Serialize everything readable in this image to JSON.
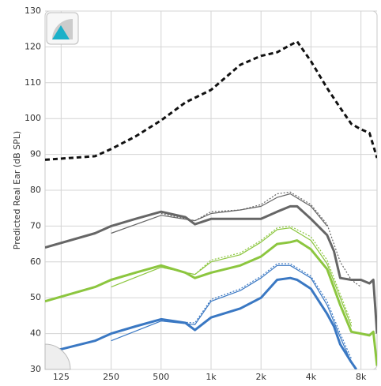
{
  "chart_data": {
    "type": "line",
    "y_label": "Predicted Real Ear (dB SPL)",
    "xscale": "log",
    "grid": true,
    "xlim": [
      100,
      10000
    ],
    "ylim": [
      30,
      130
    ],
    "xticks": [
      125,
      250,
      500,
      {
        "value": 1000,
        "label": "1k"
      },
      {
        "value": 2000,
        "label": "2k"
      },
      {
        "value": 4000,
        "label": "4k"
      },
      {
        "value": 8000,
        "label": "8k"
      }
    ],
    "yticks": [
      30,
      40,
      50,
      60,
      70,
      80,
      90,
      100,
      110,
      120,
      130
    ],
    "series": [
      {
        "color": "#111111",
        "style": "dashed",
        "weight": "thick",
        "x": [
          100,
          200,
          250,
          350,
          500,
          700,
          1000,
          1500,
          2000,
          2500,
          3000,
          3300,
          4000,
          5000,
          6000,
          7000,
          8000,
          9000,
          10000
        ],
        "values": [
          88.5,
          89.5,
          91.5,
          95,
          99.5,
          104.5,
          108,
          115,
          117.5,
          118.5,
          120.5,
          121.5,
          116,
          108.5,
          103,
          98.5,
          97,
          96,
          89
        ]
      },
      {
        "color": "#666666",
        "style": "solid",
        "weight": "thick",
        "x": [
          100,
          200,
          250,
          350,
          500,
          700,
          800,
          1000,
          1500,
          2000,
          2500,
          3000,
          3300,
          4000,
          5000,
          5500,
          6000,
          7000,
          8000,
          9000,
          9500,
          10000
        ],
        "values": [
          64,
          68,
          70,
          72,
          74,
          72.5,
          70.5,
          72,
          72,
          72,
          74,
          75.5,
          75.5,
          72,
          67.5,
          63,
          55.5,
          55,
          55,
          54,
          55,
          40
        ]
      },
      {
        "color": "#666666",
        "style": "dotted",
        "weight": "thin",
        "x": [
          500,
          800,
          1000,
          1500,
          2000,
          2500,
          3000,
          4000,
          5000,
          6000,
          7000,
          8000
        ],
        "values": [
          73.5,
          71.5,
          74,
          74.5,
          76,
          79,
          79.5,
          76,
          70.5,
          60,
          55,
          53
        ]
      },
      {
        "color": "#666666",
        "style": "solid",
        "weight": "thin",
        "x": [
          250,
          500,
          800,
          1000,
          1500,
          2000,
          2500,
          3000,
          4000,
          5000
        ],
        "values": [
          68,
          73,
          71.5,
          73.5,
          74.5,
          75.5,
          78,
          79,
          75.5,
          70
        ]
      },
      {
        "color": "#8cc63f",
        "style": "solid",
        "weight": "thick",
        "x": [
          100,
          200,
          250,
          350,
          500,
          700,
          800,
          1000,
          1500,
          2000,
          2500,
          3000,
          3300,
          4000,
          5000,
          6000,
          7000,
          8000,
          9000,
          9500,
          10000
        ],
        "values": [
          49,
          53,
          55,
          57,
          59,
          57,
          55.5,
          57,
          59,
          61.5,
          65,
          65.5,
          66,
          63.5,
          58,
          48,
          40.5,
          40,
          39.5,
          40.5,
          31
        ]
      },
      {
        "color": "#8cc63f",
        "style": "dotted",
        "weight": "thin",
        "x": [
          500,
          800,
          1000,
          1500,
          2000,
          2500,
          3000,
          4000,
          5000,
          6000,
          7000
        ],
        "values": [
          58.5,
          56.5,
          60.5,
          62.5,
          66,
          69.5,
          70,
          67,
          60.5,
          51,
          43
        ]
      },
      {
        "color": "#8cc63f",
        "style": "solid",
        "weight": "thin",
        "x": [
          250,
          500,
          800,
          1000,
          1500,
          2000,
          2500,
          3000,
          4000,
          5000,
          6000,
          7000
        ],
        "values": [
          53,
          58.5,
          56.5,
          60,
          62,
          65.5,
          69,
          69.5,
          66,
          59.5,
          50,
          42
        ]
      },
      {
        "color": "#3a78c3",
        "style": "solid",
        "weight": "thick",
        "x": [
          110,
          200,
          250,
          350,
          500,
          700,
          800,
          1000,
          1500,
          2000,
          2500,
          3000,
          3300,
          4000,
          5000,
          5500,
          6000,
          7000,
          7500
        ],
        "values": [
          35,
          38,
          40,
          42,
          44,
          43,
          41,
          44.5,
          47,
          50,
          55,
          55.5,
          55,
          52.5,
          45.5,
          42,
          37,
          32,
          30
        ]
      },
      {
        "color": "#3a78c3",
        "style": "dotted",
        "weight": "thin",
        "x": [
          500,
          800,
          1000,
          1500,
          2000,
          2500,
          3000,
          4000,
          5000,
          6000,
          7000
        ],
        "values": [
          43.5,
          43,
          49.5,
          52.5,
          56,
          59.5,
          59.5,
          56,
          49,
          40,
          33
        ]
      },
      {
        "color": "#3a78c3",
        "style": "solid",
        "weight": "thin",
        "x": [
          250,
          500,
          800,
          1000,
          1500,
          2000,
          2500,
          3000,
          4000,
          5000,
          6000,
          7000
        ],
        "values": [
          38,
          43.5,
          42.5,
          49,
          52,
          55.5,
          59,
          59,
          55.5,
          48,
          39,
          32
        ]
      }
    ]
  }
}
